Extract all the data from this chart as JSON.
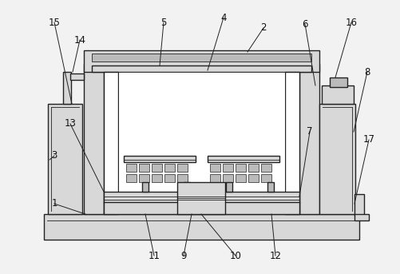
{
  "bg_color": "#f2f2f2",
  "line_color": "#222222",
  "lw": 1.0,
  "tlw": 0.6,
  "white": "#ffffff",
  "light_gray": "#d8d8d8",
  "mid_gray": "#bbbbbb",
  "dark_gray": "#999999"
}
